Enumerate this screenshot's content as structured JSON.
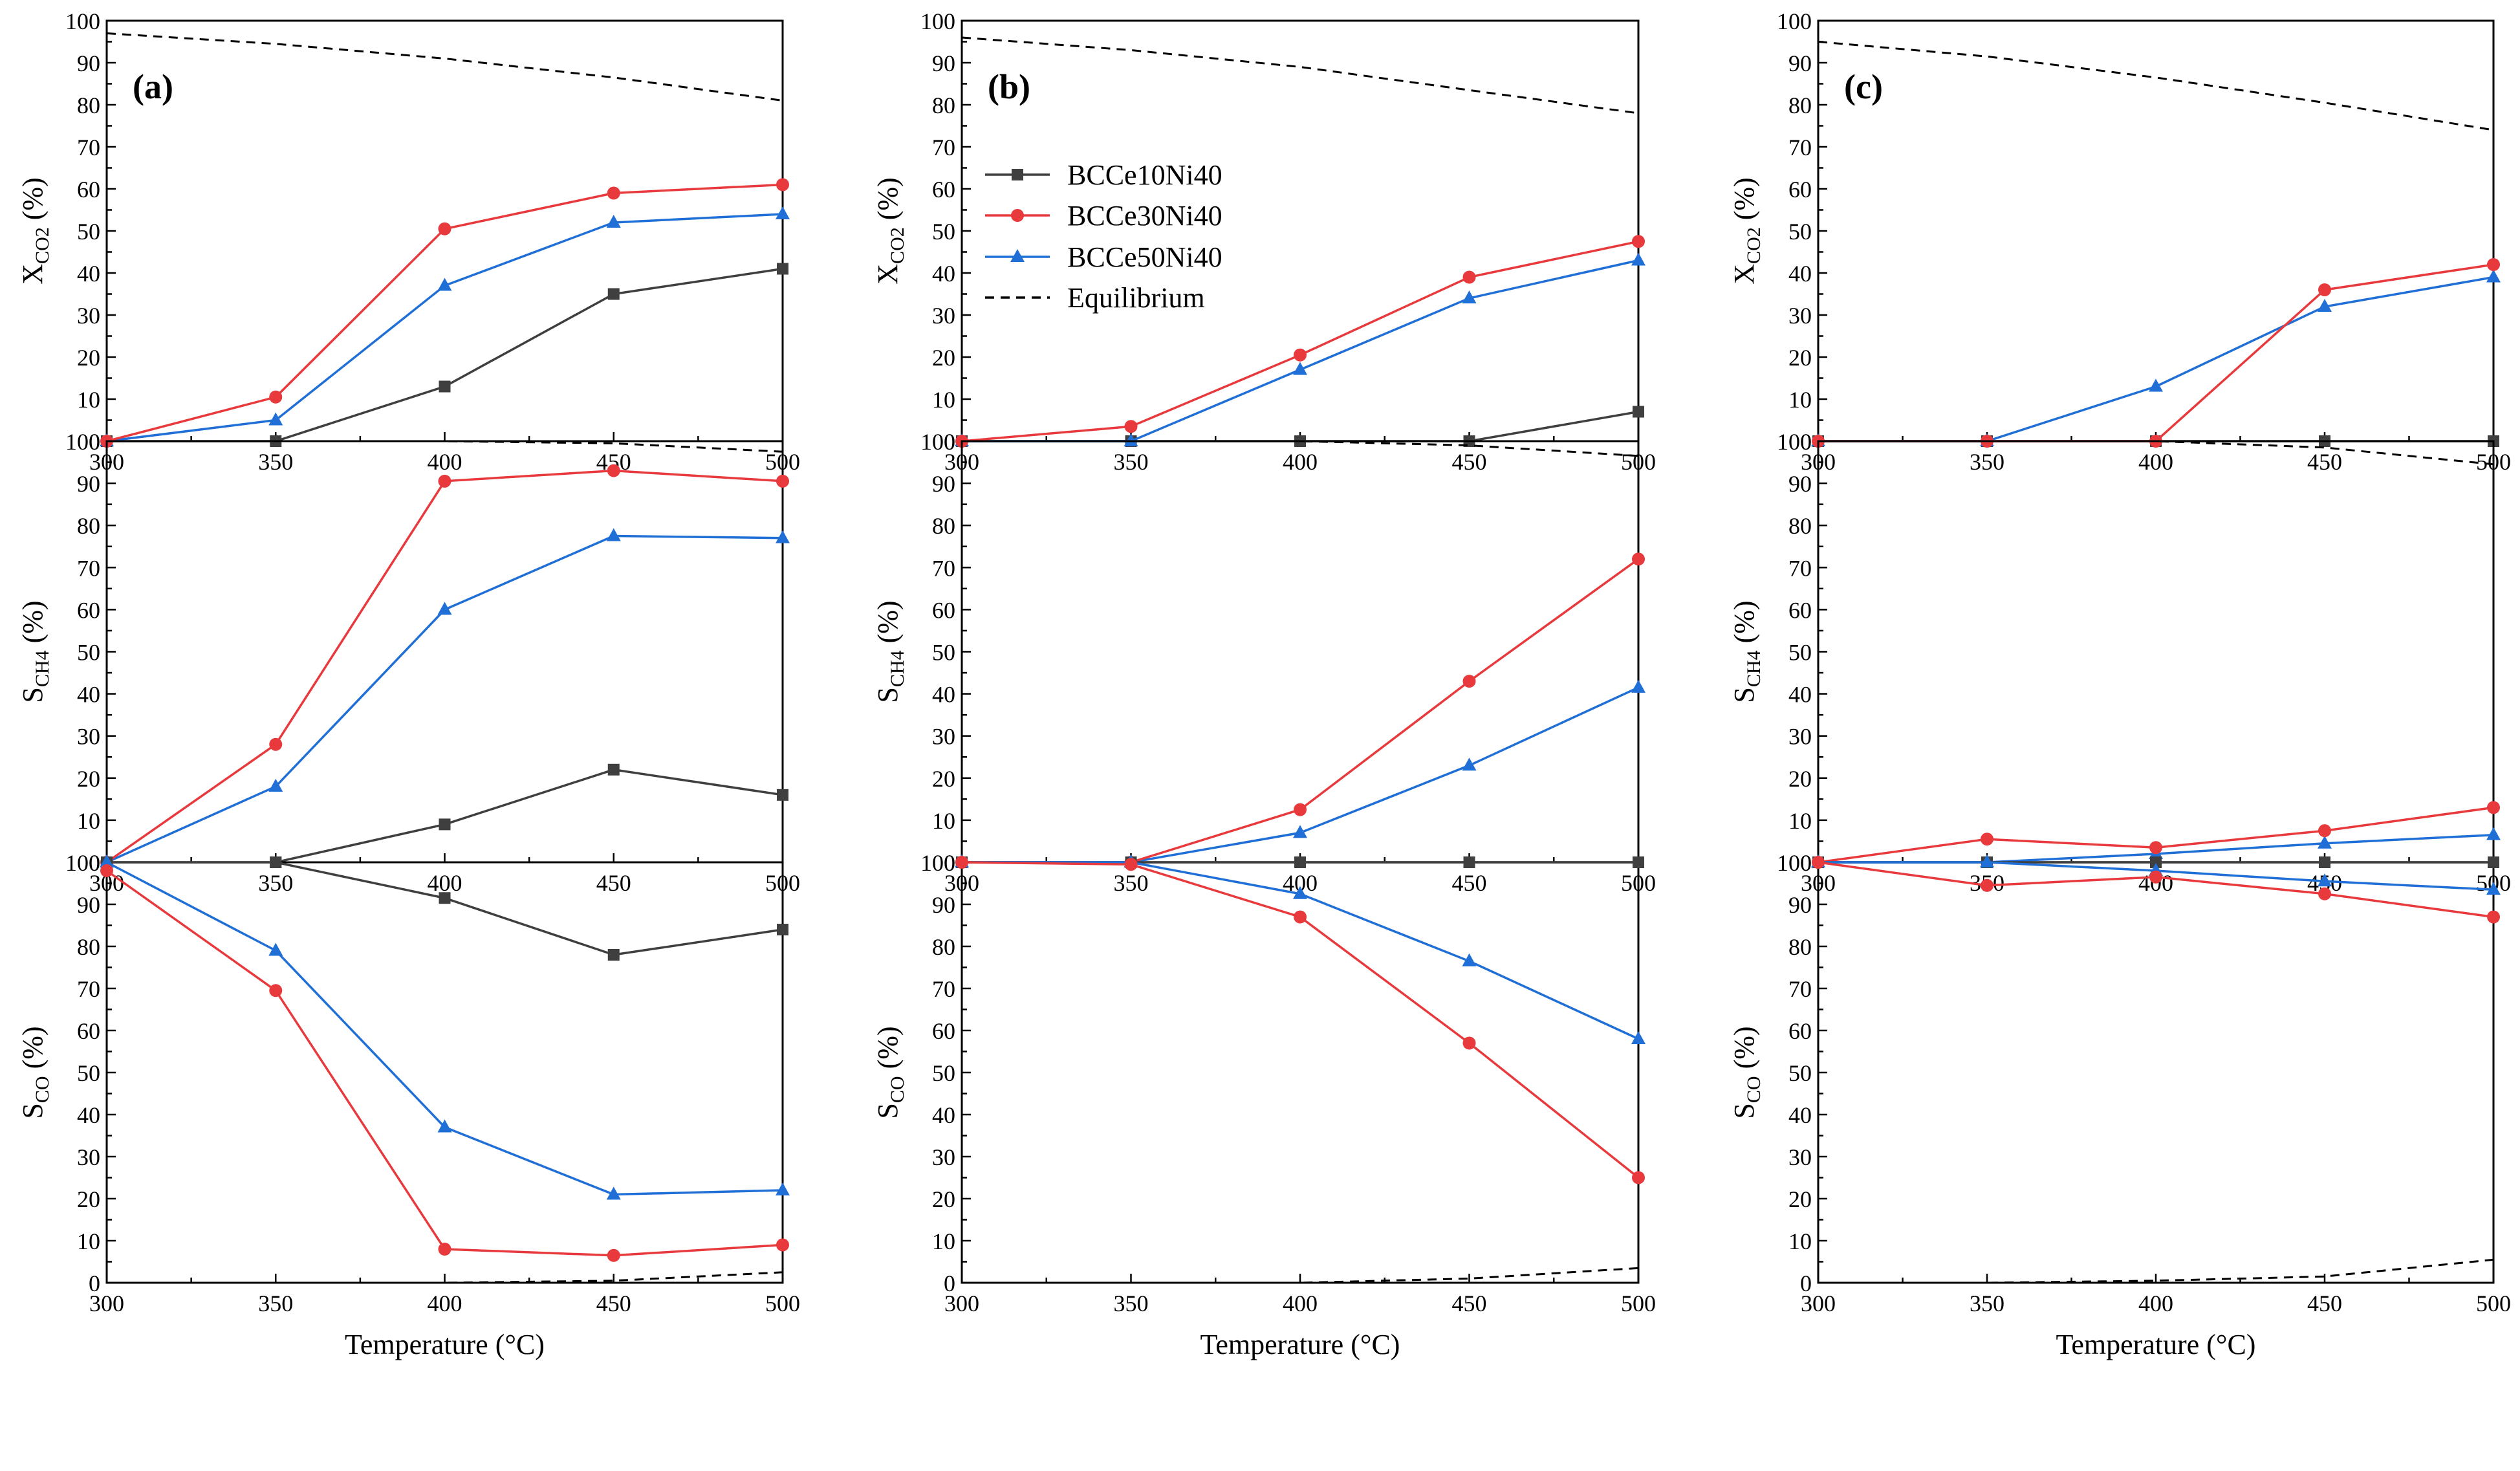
{
  "legend": {
    "items": [
      {
        "key": "s10",
        "label": "BCCe10Ni40"
      },
      {
        "key": "s30",
        "label": "BCCe30Ni40"
      },
      {
        "key": "s50",
        "label": "BCCe50Ni40"
      },
      {
        "key": "eq",
        "label": "Equilibrium"
      }
    ]
  },
  "series_styles": {
    "s10": {
      "color": "#3f3f3f",
      "marker": "square"
    },
    "s30": {
      "color": "#e8393c",
      "marker": "circle"
    },
    "s50": {
      "color": "#1f6fd6",
      "marker": "triangle"
    },
    "eq": {
      "color": "#000000",
      "marker": "none",
      "dash": true
    }
  },
  "chart_data": [
    {
      "type": "line",
      "panel": "(a)",
      "ylabel": "X",
      "ylabel_sub": "CO2",
      "ylabel_unit": " (%)",
      "xlabel": "",
      "x": [
        300,
        350,
        400,
        450,
        500
      ],
      "xlim": [
        300,
        500
      ],
      "ylim": [
        0,
        100
      ],
      "series": [
        {
          "key": "s10",
          "name": "BCCe10Ni40",
          "values": [
            0,
            0,
            13,
            35,
            41
          ]
        },
        {
          "key": "s30",
          "name": "BCCe30Ni40",
          "values": [
            0,
            10.5,
            50.5,
            59,
            61
          ]
        },
        {
          "key": "s50",
          "name": "BCCe50Ni40",
          "values": [
            0,
            5,
            37,
            52,
            54
          ]
        },
        {
          "key": "eq",
          "name": "Equilibrium",
          "values": [
            97,
            94.5,
            91,
            86.5,
            81
          ]
        }
      ]
    },
    {
      "type": "line",
      "panel": "(b)",
      "ylabel": "X",
      "ylabel_sub": "CO2",
      "ylabel_unit": " (%)",
      "xlabel": "",
      "x": [
        300,
        350,
        400,
        450,
        500
      ],
      "xlim": [
        300,
        500
      ],
      "ylim": [
        0,
        100
      ],
      "series": [
        {
          "key": "s10",
          "name": "BCCe10Ni40",
          "values": [
            0,
            0,
            0,
            0,
            7
          ]
        },
        {
          "key": "s30",
          "name": "BCCe30Ni40",
          "values": [
            0,
            3.5,
            20.5,
            39,
            47.5
          ]
        },
        {
          "key": "s50",
          "name": "BCCe50Ni40",
          "values": [
            0,
            0,
            17,
            34,
            43
          ]
        },
        {
          "key": "eq",
          "name": "Equilibrium",
          "values": [
            96,
            93,
            89,
            83.5,
            78
          ]
        }
      ]
    },
    {
      "type": "line",
      "panel": "(c)",
      "ylabel": "X",
      "ylabel_sub": "CO2",
      "ylabel_unit": " (%)",
      "xlabel": "",
      "x": [
        300,
        350,
        400,
        450,
        500
      ],
      "xlim": [
        300,
        500
      ],
      "ylim": [
        0,
        100
      ],
      "series": [
        {
          "key": "s10",
          "name": "BCCe10Ni40",
          "values": [
            0,
            0,
            0,
            0,
            0
          ]
        },
        {
          "key": "s30",
          "name": "BCCe30Ni40",
          "values": [
            0,
            0,
            0,
            36,
            42
          ]
        },
        {
          "key": "s50",
          "name": "BCCe50Ni40",
          "values": [
            0,
            0,
            13,
            32,
            39
          ]
        },
        {
          "key": "eq",
          "name": "Equilibrium",
          "values": [
            95,
            91.5,
            86.5,
            80.5,
            74
          ]
        }
      ]
    },
    {
      "type": "line",
      "panel": "",
      "ylabel": "S",
      "ylabel_sub": "CH4",
      "ylabel_unit": " (%)",
      "xlabel": "",
      "x": [
        300,
        350,
        400,
        450,
        500
      ],
      "xlim": [
        300,
        500
      ],
      "ylim": [
        0,
        100
      ],
      "series": [
        {
          "key": "s10",
          "name": "BCCe10Ni40",
          "values": [
            0,
            0,
            9,
            22,
            16
          ]
        },
        {
          "key": "s30",
          "name": "BCCe30Ni40",
          "values": [
            0,
            28,
            90.5,
            93,
            90.5
          ]
        },
        {
          "key": "s50",
          "name": "BCCe50Ni40",
          "values": [
            0,
            18,
            60,
            77.5,
            77
          ]
        },
        {
          "key": "eq",
          "name": "Equilibrium",
          "values": [
            100,
            100,
            100,
            99.5,
            97.5
          ]
        }
      ]
    },
    {
      "type": "line",
      "panel": "",
      "ylabel": "S",
      "ylabel_sub": "CH4",
      "ylabel_unit": " (%)",
      "xlabel": "",
      "x": [
        300,
        350,
        400,
        450,
        500
      ],
      "xlim": [
        300,
        500
      ],
      "ylim": [
        0,
        100
      ],
      "series": [
        {
          "key": "s10",
          "name": "BCCe10Ni40",
          "values": [
            0,
            0,
            0,
            0,
            0
          ]
        },
        {
          "key": "s30",
          "name": "BCCe30Ni40",
          "values": [
            0,
            0,
            12.5,
            43,
            72
          ]
        },
        {
          "key": "s50",
          "name": "BCCe50Ni40",
          "values": [
            0,
            0,
            7,
            23,
            41.5
          ]
        },
        {
          "key": "eq",
          "name": "Equilibrium",
          "values": [
            100,
            100,
            100,
            99,
            96.5
          ]
        }
      ]
    },
    {
      "type": "line",
      "panel": "",
      "ylabel": "S",
      "ylabel_sub": "CH4",
      "ylabel_unit": " (%)",
      "xlabel": "",
      "x": [
        300,
        350,
        400,
        450,
        500
      ],
      "xlim": [
        300,
        500
      ],
      "ylim": [
        0,
        100
      ],
      "series": [
        {
          "key": "s10",
          "name": "BCCe10Ni40",
          "values": [
            0,
            0,
            0,
            0,
            0
          ]
        },
        {
          "key": "s30",
          "name": "BCCe30Ni40",
          "values": [
            0,
            5.5,
            3.5,
            7.5,
            13
          ]
        },
        {
          "key": "s50",
          "name": "BCCe50Ni40",
          "values": [
            0,
            0,
            2,
            4.5,
            6.5
          ]
        },
        {
          "key": "eq",
          "name": "Equilibrium",
          "values": [
            100,
            100,
            100,
            98.5,
            94.5
          ]
        }
      ]
    },
    {
      "type": "line",
      "panel": "",
      "ylabel": "S",
      "ylabel_sub": "CO",
      "ylabel_unit": " (%)",
      "xlabel": "Temperature (°C)",
      "x": [
        300,
        350,
        400,
        450,
        500
      ],
      "xlim": [
        300,
        500
      ],
      "ylim": [
        0,
        100
      ],
      "series": [
        {
          "key": "s10",
          "name": "BCCe10Ni40",
          "values": [
            100,
            100,
            91.5,
            78,
            84
          ]
        },
        {
          "key": "s30",
          "name": "BCCe30Ni40",
          "values": [
            98,
            69.5,
            8,
            6.5,
            9
          ]
        },
        {
          "key": "s50",
          "name": "BCCe50Ni40",
          "values": [
            100,
            79,
            37,
            21,
            22
          ]
        },
        {
          "key": "eq",
          "name": "Equilibrium",
          "values": [
            0,
            0,
            0,
            0.5,
            2.5
          ]
        }
      ]
    },
    {
      "type": "line",
      "panel": "",
      "ylabel": "S",
      "ylabel_sub": "CO",
      "ylabel_unit": " (%)",
      "xlabel": "Temperature (°C)",
      "x": [
        300,
        350,
        400,
        450,
        500
      ],
      "xlim": [
        300,
        500
      ],
      "ylim": [
        0,
        100
      ],
      "series": [
        {
          "key": "s10",
          "name": "BCCe10Ni40",
          "values": [
            100,
            100,
            100,
            100,
            100
          ]
        },
        {
          "key": "s30",
          "name": "BCCe30Ni40",
          "values": [
            100,
            99.5,
            87,
            57,
            25
          ]
        },
        {
          "key": "s50",
          "name": "BCCe50Ni40",
          "values": [
            100,
            100,
            92.5,
            76.5,
            58
          ]
        },
        {
          "key": "eq",
          "name": "Equilibrium",
          "values": [
            0,
            0,
            0,
            1,
            3.5
          ]
        }
      ]
    },
    {
      "type": "line",
      "panel": "",
      "ylabel": "S",
      "ylabel_sub": "CO",
      "ylabel_unit": " (%)",
      "xlabel": "Temperature (°C)",
      "x": [
        300,
        350,
        400,
        450,
        500
      ],
      "xlim": [
        300,
        500
      ],
      "ylim": [
        0,
        100
      ],
      "series": [
        {
          "key": "s10",
          "name": "BCCe10Ni40",
          "values": [
            100,
            100,
            100,
            100,
            100
          ]
        },
        {
          "key": "s30",
          "name": "BCCe30Ni40",
          "values": [
            100,
            94.5,
            96.5,
            92.5,
            87
          ]
        },
        {
          "key": "s50",
          "name": "BCCe50Ni40",
          "values": [
            100,
            100,
            98,
            95.5,
            93.5
          ]
        },
        {
          "key": "eq",
          "name": "Equilibrium",
          "values": [
            0,
            0,
            0.5,
            1.5,
            5.5
          ]
        }
      ]
    }
  ]
}
